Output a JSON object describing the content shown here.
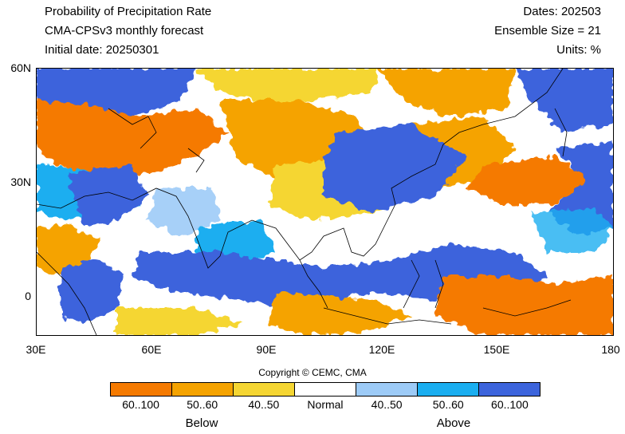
{
  "header": {
    "title": "Probability of Precipitation Rate",
    "model": "CMA-CPSv3 monthly forecast",
    "initial_date": "Initial date: 20250301",
    "dates": "Dates: 202503",
    "ensemble_size": "Ensemble Size = 21",
    "units": "Units: %"
  },
  "map": {
    "lat_ticks": [
      "60N",
      "30N",
      "0"
    ],
    "lon_ticks": [
      "30E",
      "60E",
      "90E",
      "120E",
      "150E",
      "180"
    ],
    "lon_range": [
      30,
      180
    ],
    "lat_range": [
      -10,
      60
    ],
    "coastline_color": "#000000"
  },
  "copyright": "Copyright © CEMC, CMA",
  "legend": {
    "categories": [
      {
        "label": "60..100",
        "color": "#f57a00"
      },
      {
        "label": "50..60",
        "color": "#f5a300"
      },
      {
        "label": "40..50",
        "color": "#f5d633"
      },
      {
        "label": "Normal",
        "color": "#ffffff"
      },
      {
        "label": "40..50",
        "color": "#9dcbf7"
      },
      {
        "label": "50..60",
        "color": "#1aaef0"
      },
      {
        "label": "60..100",
        "color": "#3c64dc"
      }
    ],
    "below_label": "Below",
    "above_label": "Above"
  }
}
